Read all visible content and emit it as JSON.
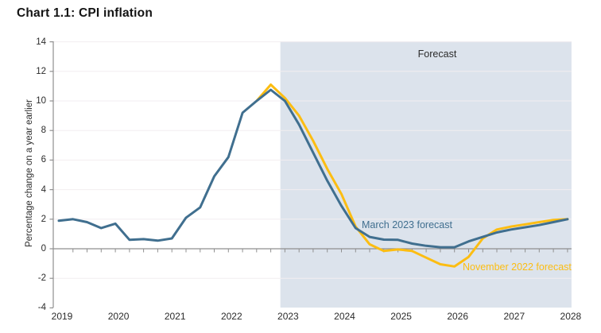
{
  "title": "Chart 1.1: CPI inflation",
  "forecast_label": "Forecast",
  "annotations": {
    "march": "March 2023 forecast",
    "november": "November 2022 forecast"
  },
  "colors": {
    "march_line": "#406f8f",
    "november_line": "#fcbd12",
    "forecast_band": "#dce3ec",
    "gridline": "#f2eef0",
    "axis": "#8f8f8f",
    "text": "#2b2b2b",
    "title_text": "#141414"
  },
  "chart_data": {
    "type": "line",
    "title": "Chart 1.1: CPI inflation",
    "xlabel": "",
    "ylabel": "Percentage change on a year earlier",
    "ylim": [
      -4,
      14
    ],
    "yticks": [
      14,
      12,
      10,
      8,
      6,
      4,
      2,
      0,
      -2,
      -4
    ],
    "gridlines_at": [
      14,
      12,
      10,
      8,
      6,
      4,
      2,
      -2
    ],
    "x_years": [
      2019,
      2020,
      2021,
      2022,
      2023,
      2024,
      2025,
      2026,
      2027,
      2028
    ],
    "grid": "faint-horizontal",
    "legend_position": "inline-annotations",
    "forecast_band_start": 2022.92,
    "forecast_band_end": 2028.07,
    "series": [
      {
        "name": "March 2023 forecast",
        "color": "#406f8f",
        "start": 2019.0,
        "step_years": 0.25,
        "values": [
          1.9,
          2.0,
          1.8,
          1.4,
          1.7,
          0.6,
          0.65,
          0.55,
          0.7,
          2.1,
          2.8,
          4.9,
          6.2,
          9.2,
          10.0,
          10.75,
          10.0,
          8.4,
          6.5,
          4.6,
          2.9,
          1.4,
          0.8,
          0.62,
          0.6,
          0.35,
          0.2,
          0.1,
          0.1,
          0.5,
          0.8,
          1.1,
          1.3,
          1.45,
          1.6,
          1.8,
          2.0
        ]
      },
      {
        "name": "November 2022 forecast",
        "color": "#fcbd12",
        "start": 2022.5,
        "step_years": 0.25,
        "values": [
          10.0,
          11.1,
          10.2,
          9.0,
          7.3,
          5.4,
          3.7,
          1.5,
          0.3,
          -0.15,
          -0.05,
          -0.15,
          -0.6,
          -1.05,
          -1.2,
          -0.55,
          0.7,
          1.3,
          1.5,
          1.65,
          1.8,
          1.95,
          2.0
        ]
      }
    ]
  }
}
